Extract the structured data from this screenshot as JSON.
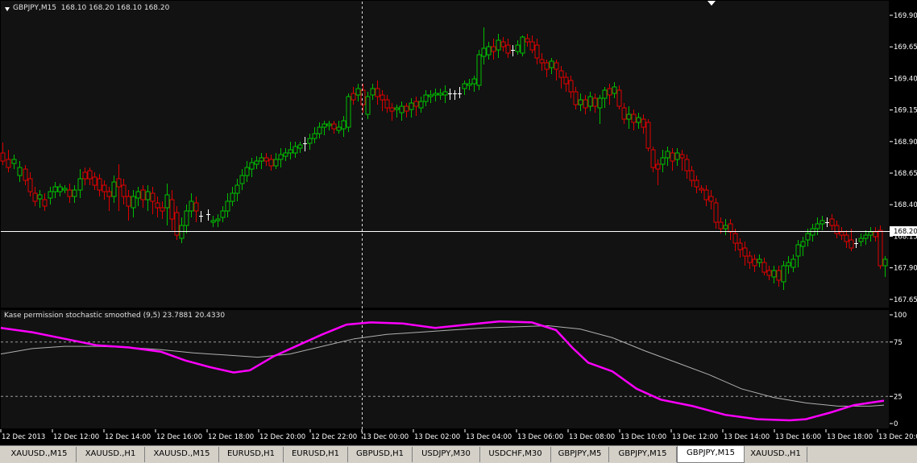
{
  "chart": {
    "symbol_label": "GBPJPY,M15",
    "ohlc_label": "168.10 168.20 168.10 168.20",
    "price_axis": [
      "169.90",
      "169.65",
      "169.40",
      "169.15",
      "168.90",
      "168.65",
      "168.40",
      "168.15",
      "167.90",
      "167.65"
    ],
    "current_price": "168.20",
    "time_axis": [
      "12 Dec 2013",
      "12 Dec 12:00",
      "12 Dec 14:00",
      "12 Dec 16:00",
      "12 Dec 18:00",
      "12 Dec 20:00",
      "12 Dec 22:00",
      "13 Dec 00:00",
      "13 Dec 02:00",
      "13 Dec 04:00",
      "13 Dec 06:00",
      "13 Dec 08:00",
      "13 Dec 10:00",
      "13 Dec 12:00",
      "13 Dec 14:00",
      "13 Dec 16:00",
      "13 Dec 18:00",
      "13 Dec 20:00"
    ],
    "up_color": "#00c000",
    "down_color": "#e00000",
    "doji_color": "#ffffff"
  },
  "indicator": {
    "label": "Kase permission stochastic smoothed (9,5) 23.7881 20.4330",
    "axis": [
      "100",
      "75",
      "25",
      "0"
    ],
    "main_color": "#ff00ff",
    "signal_color": "#b0b0b0"
  },
  "tabs": [
    {
      "label": "XAUUSD.,M15",
      "active": false
    },
    {
      "label": "XAUUSD.,H1",
      "active": false
    },
    {
      "label": "XAUUSD.,M15",
      "active": false
    },
    {
      "label": "EURUSD,H1",
      "active": false
    },
    {
      "label": "EURUSD,H1",
      "active": false
    },
    {
      "label": "GBPUSD,H1",
      "active": false
    },
    {
      "label": "USDJPY,M30",
      "active": false
    },
    {
      "label": "USDCHF,M30",
      "active": false
    },
    {
      "label": "GBPJPY,M5",
      "active": false
    },
    {
      "label": "GBPJPY,M15",
      "active": false
    },
    {
      "label": "GBPJPY,M15",
      "active": true
    },
    {
      "label": "XAUUSD.,H1",
      "active": false
    }
  ]
}
